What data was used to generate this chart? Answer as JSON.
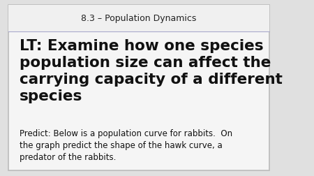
{
  "background_color": "#e0e0e0",
  "outer_border_color": "#bbbbbb",
  "slide_bg": "#f5f5f5",
  "header_text": "8.3 – Population Dynamics",
  "header_fontsize": 9,
  "header_color": "#222222",
  "divider_color": "#aaaacc",
  "main_text": "LT: Examine how one species\npopulation size can affect the\ncarrying capacity of a different\nspecies",
  "main_fontsize": 15.5,
  "main_color": "#111111",
  "body_text": "Predict: Below is a population curve for rabbits.  On\nthe graph predict the shape of the hawk curve, a\npredator of the rabbits.",
  "body_fontsize": 8.5,
  "body_color": "#111111"
}
